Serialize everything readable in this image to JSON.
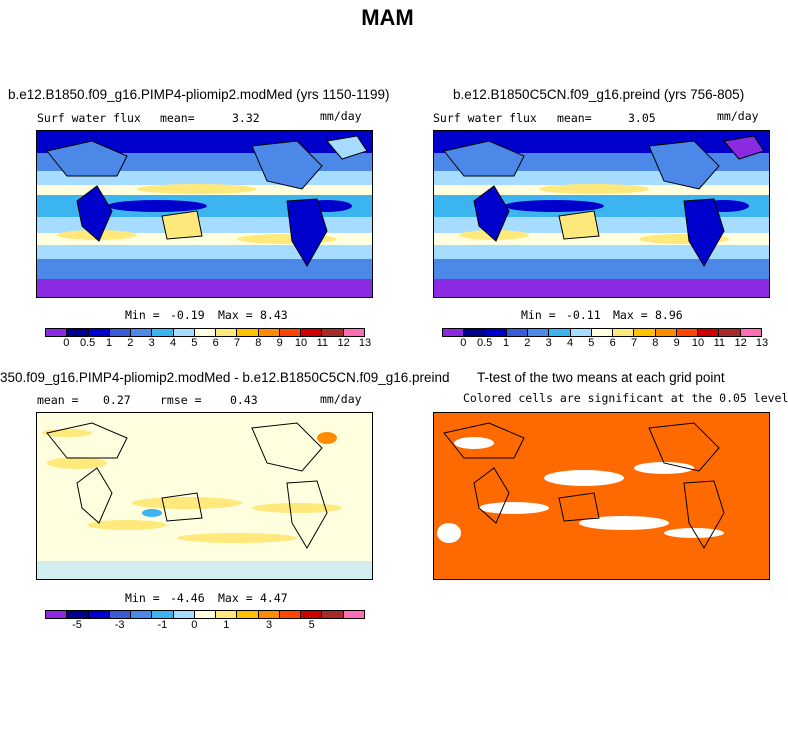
{
  "suptitle": "MAM",
  "colors": {
    "full_scale": [
      "#8a2be2",
      "#00008b",
      "#0000cd",
      "#3b5bd6",
      "#4b88e8",
      "#3cb4f0",
      "#a6dcff",
      "#ffffe0",
      "#ffe87c",
      "#ffc000",
      "#ff8c00",
      "#ff4500",
      "#cc0000",
      "#a52a2a",
      "#ff6eb4"
    ],
    "diff_scale": [
      "#8a2be2",
      "#00008b",
      "#0000cd",
      "#3b5bd6",
      "#4b88e8",
      "#3cb4f0",
      "#a6dcff",
      "#ffffe0",
      "#ffe87c",
      "#ffc000",
      "#ff8c00",
      "#ff4500",
      "#cc0000",
      "#a52a2a",
      "#ff6eb4"
    ],
    "significant": "#ff6a00",
    "land_outline": "#000000"
  },
  "panel1": {
    "title": "b.e12.B1850.f09_g16.PIMP4-pliomip2.modMed (yrs 1150-1199)",
    "variable": "Surf water flux",
    "mean_label": "mean=",
    "mean_value": "3.32",
    "units": "mm/day",
    "min_label": "Min =",
    "min_value": "-0.19",
    "max_label": "Max =",
    "max_value": "8.43",
    "ticks": [
      "0",
      "0.5",
      "1",
      "2",
      "3",
      "4",
      "5",
      "6",
      "7",
      "8",
      "9",
      "10",
      "11",
      "12",
      "13"
    ]
  },
  "panel2": {
    "title": "b.e12.B1850C5CN.f09_g16.preind (yrs 756-805)",
    "variable": "Surf water flux",
    "mean_label": "mean=",
    "mean_value": "3.05",
    "units": "mm/day",
    "min_label": "Min =",
    "min_value": "-0.11",
    "max_label": "Max =",
    "max_value": "8.96",
    "ticks": [
      "0",
      "0.5",
      "1",
      "2",
      "3",
      "4",
      "5",
      "6",
      "7",
      "8",
      "9",
      "10",
      "11",
      "12",
      "13"
    ]
  },
  "panel3": {
    "title": "350.f09_g16.PIMP4-pliomip2.modMed - b.e12.B1850C5CN.f09_g16.preind",
    "mean_label": "mean =",
    "mean_value": "0.27",
    "rmse_label": "rmse =",
    "rmse_value": "0.43",
    "units": "mm/day",
    "min_label": "Min =",
    "min_value": "-4.46",
    "max_label": "Max =",
    "max_value": "4.47",
    "ticks": [
      "-5",
      "-3",
      "-1",
      "0",
      "1",
      "3",
      "5"
    ]
  },
  "panel4": {
    "title": "T-test of the two means at each grid point",
    "subtitle": "Colored cells are significant at the 0.05 level"
  }
}
